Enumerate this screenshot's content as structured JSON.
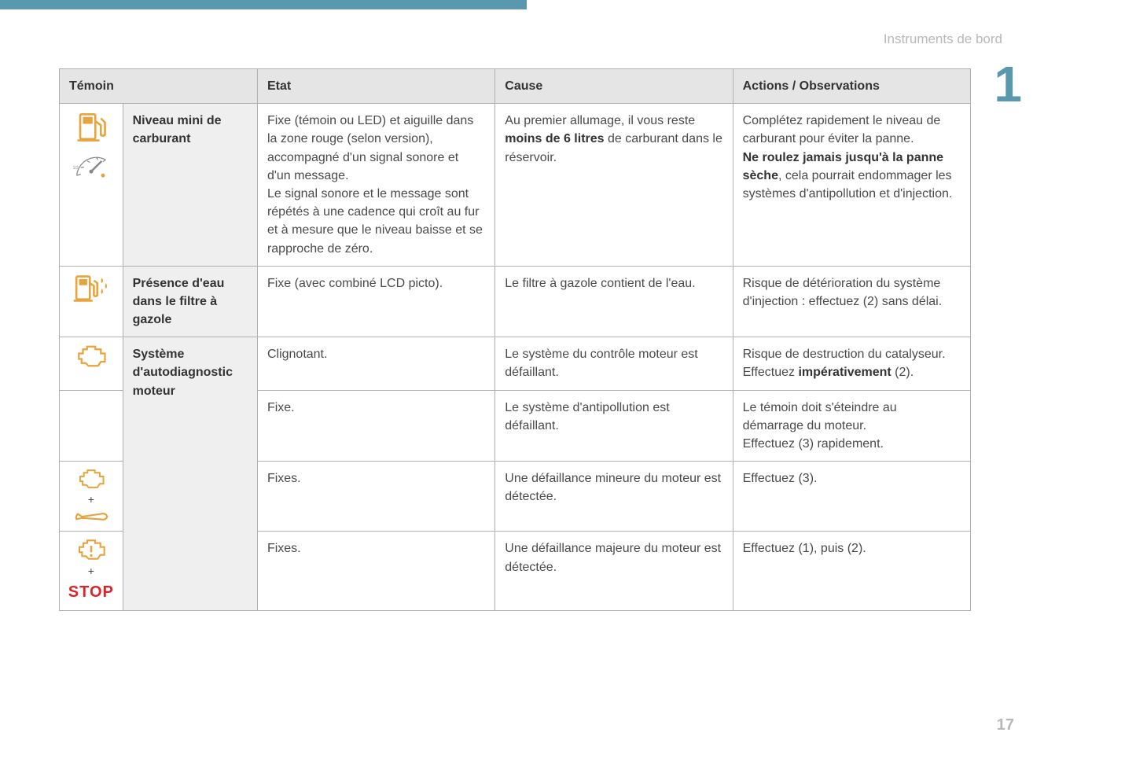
{
  "page": {
    "section_title": "Instruments de bord",
    "chapter_number": "1",
    "page_number": "17"
  },
  "table": {
    "headers": {
      "temoin": "Témoin",
      "etat": "Etat",
      "cause": "Cause",
      "actions": "Actions / Observations"
    },
    "rows": {
      "fuel": {
        "label": "Niveau mini de carburant",
        "etat": "Fixe (témoin ou LED) et aiguille dans la zone rouge (selon version), accompagné d'un signal sonore et d'un message.\nLe signal sonore et le message sont répétés à une cadence qui croît au fur et à mesure que le niveau baisse et se rapproche de zéro.",
        "cause_pre": "Au premier allumage, il vous reste ",
        "cause_bold": "moins de 6 litres",
        "cause_post": " de carburant dans le réservoir.",
        "actions_pre": "Complétez rapidement le niveau de carburant pour éviter la panne.\n",
        "actions_bold": "Ne roulez jamais jusqu'à la panne sèche",
        "actions_post": ", cela pourrait endommager les systèmes d'antipollution et d'injection."
      },
      "water": {
        "label": "Présence d'eau dans le filtre à gazole",
        "etat": "Fixe (avec combiné LCD picto).",
        "cause": "Le filtre à gazole contient de l'eau.",
        "actions": "Risque de détérioration du système d'injection : effectuez (2) sans délai."
      },
      "diag": {
        "label": "Système d'autodiagnostic moteur",
        "r1": {
          "etat": "Clignotant.",
          "cause": "Le système du contrôle moteur est défaillant.",
          "actions_pre": "Risque de destruction du catalyseur. Effectuez ",
          "actions_bold": "impérativement",
          "actions_post": " (2)."
        },
        "r2": {
          "etat": "Fixe.",
          "cause": "Le système d'antipollution est défaillant.",
          "actions": "Le témoin doit s'éteindre au démarrage du moteur.\nEffectuez (3) rapidement."
        },
        "r3": {
          "etat": "Fixes.",
          "cause": "Une défaillance mineure du moteur est détectée.",
          "actions": "Effectuez (3)."
        },
        "r4": {
          "etat": "Fixes.",
          "cause": "Une défaillance majeure du moteur est détectée.",
          "actions": "Effectuez (1), puis (2)."
        }
      }
    }
  },
  "icons": {
    "plus": "+",
    "stop": "STOP",
    "colors": {
      "amber": "#e8a33d",
      "red": "#d9252a",
      "grey": "#888888"
    }
  }
}
